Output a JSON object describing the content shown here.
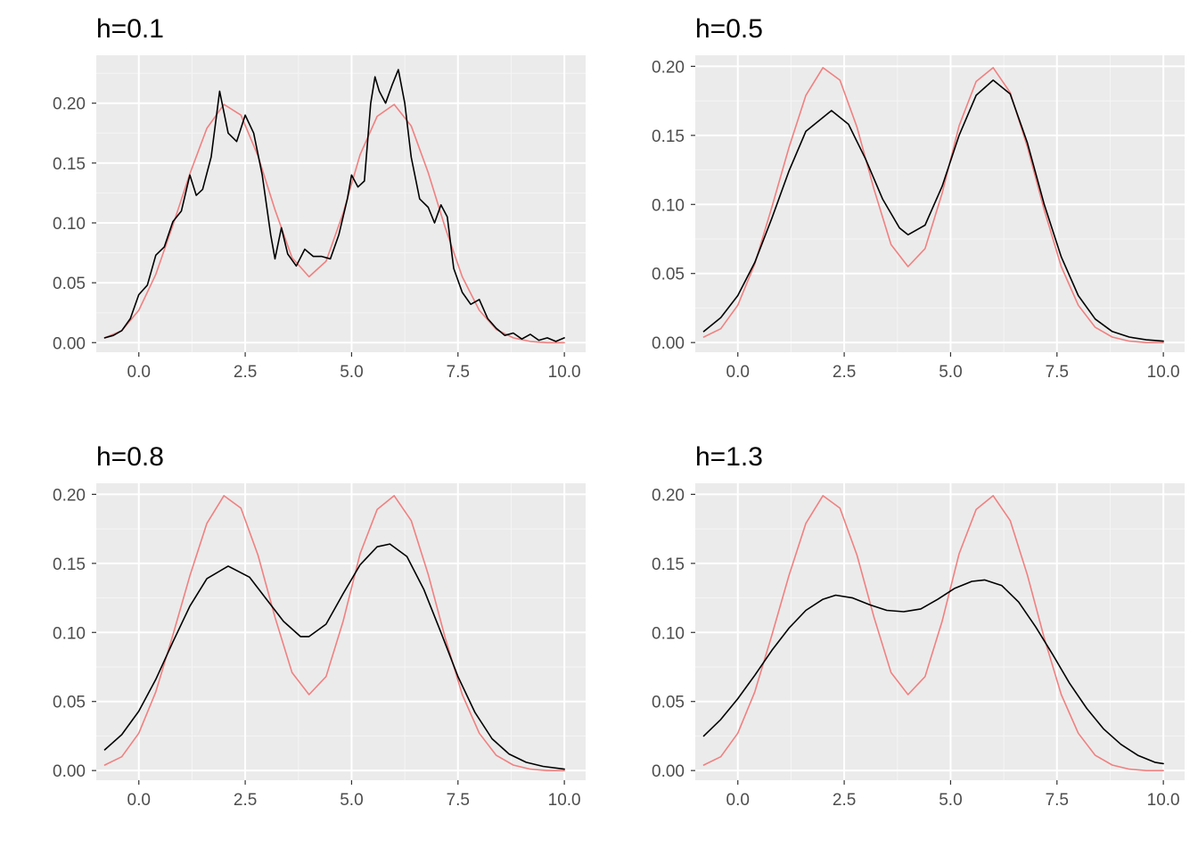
{
  "colors": {
    "panel_background": "#ebebeb",
    "grid_major": "#ffffff",
    "grid_minor": "#f5f5f5",
    "true_density": "#f08080",
    "kde_estimate": "#000000",
    "tick_text": "#4d4d4d"
  },
  "chart_data": [
    {
      "type": "line",
      "title": "h=0.1",
      "xlabel": "",
      "ylabel": "",
      "xlim": [
        -1.0,
        10.5
      ],
      "ylim": [
        -0.008,
        0.24
      ],
      "x_ticks": [
        0,
        2.5,
        5,
        7.5,
        10
      ],
      "x_tick_labels": [
        "0.0",
        "2.5",
        "5.0",
        "7.5",
        "10.0"
      ],
      "y_ticks": [
        0,
        0.05,
        0.1,
        0.15,
        0.2
      ],
      "y_tick_labels": [
        "0.00",
        "0.05",
        "0.10",
        "0.15",
        "0.20"
      ],
      "grid": true,
      "legend": "none",
      "series": [
        {
          "x": [
            -0.8,
            -0.4,
            0,
            0.4,
            0.8,
            1.2,
            1.6,
            2,
            2.4,
            2.8,
            3.2,
            3.6,
            4,
            4.4,
            4.8,
            5.2,
            5.6,
            6,
            6.4,
            6.8,
            7.2,
            7.6,
            8,
            8.4,
            8.8,
            9.2,
            9.6,
            10
          ],
          "values": [
            0.004,
            0.01,
            0.027,
            0.057,
            0.098,
            0.141,
            0.179,
            0.199,
            0.19,
            0.156,
            0.111,
            0.071,
            0.055,
            0.068,
            0.108,
            0.157,
            0.189,
            0.199,
            0.181,
            0.142,
            0.096,
            0.055,
            0.027,
            0.011,
            0.004,
            0.001,
            0.0,
            0.0
          ]
        },
        {
          "x": [
            -0.8,
            -0.6,
            -0.4,
            -0.2,
            0,
            0.2,
            0.4,
            0.6,
            0.8,
            1.0,
            1.2,
            1.35,
            1.5,
            1.7,
            1.9,
            2.1,
            2.3,
            2.5,
            2.7,
            2.9,
            3.1,
            3.2,
            3.35,
            3.5,
            3.7,
            3.9,
            4.1,
            4.3,
            4.5,
            4.7,
            4.9,
            5.0,
            5.15,
            5.3,
            5.45,
            5.55,
            5.65,
            5.8,
            5.95,
            6.1,
            6.25,
            6.4,
            6.6,
            6.8,
            6.95,
            7.1,
            7.25,
            7.4,
            7.6,
            7.8,
            8.0,
            8.2,
            8.4,
            8.6,
            8.8,
            9.0,
            9.2,
            9.4,
            9.6,
            9.8,
            10.0
          ],
          "values": [
            0.004,
            0.006,
            0.01,
            0.02,
            0.04,
            0.048,
            0.073,
            0.08,
            0.101,
            0.11,
            0.14,
            0.123,
            0.128,
            0.155,
            0.21,
            0.175,
            0.168,
            0.19,
            0.175,
            0.14,
            0.09,
            0.07,
            0.096,
            0.074,
            0.064,
            0.078,
            0.072,
            0.072,
            0.07,
            0.09,
            0.12,
            0.14,
            0.13,
            0.135,
            0.2,
            0.222,
            0.21,
            0.2,
            0.215,
            0.228,
            0.2,
            0.155,
            0.12,
            0.113,
            0.1,
            0.115,
            0.105,
            0.062,
            0.042,
            0.032,
            0.036,
            0.02,
            0.012,
            0.006,
            0.008,
            0.003,
            0.007,
            0.002,
            0.004,
            0.001,
            0.004
          ]
        }
      ]
    },
    {
      "type": "line",
      "title": "h=0.5",
      "xlabel": "",
      "ylabel": "",
      "xlim": [
        -1.0,
        10.5
      ],
      "ylim": [
        -0.007,
        0.208
      ],
      "x_ticks": [
        0,
        2.5,
        5,
        7.5,
        10
      ],
      "x_tick_labels": [
        "0.0",
        "2.5",
        "5.0",
        "7.5",
        "10.0"
      ],
      "y_ticks": [
        0,
        0.05,
        0.1,
        0.15,
        0.2
      ],
      "y_tick_labels": [
        "0.00",
        "0.05",
        "0.10",
        "0.15",
        "0.20"
      ],
      "grid": true,
      "legend": "none",
      "series": [
        {
          "x": [
            -0.8,
            -0.4,
            0,
            0.4,
            0.8,
            1.2,
            1.6,
            2,
            2.4,
            2.8,
            3.2,
            3.6,
            4,
            4.4,
            4.8,
            5.2,
            5.6,
            6,
            6.4,
            6.8,
            7.2,
            7.6,
            8,
            8.4,
            8.8,
            9.2,
            9.6,
            10
          ],
          "values": [
            0.004,
            0.01,
            0.027,
            0.057,
            0.098,
            0.141,
            0.179,
            0.199,
            0.19,
            0.156,
            0.111,
            0.071,
            0.055,
            0.068,
            0.108,
            0.157,
            0.189,
            0.199,
            0.181,
            0.142,
            0.096,
            0.055,
            0.027,
            0.011,
            0.004,
            0.001,
            0.0,
            0.0
          ]
        },
        {
          "x": [
            -0.8,
            -0.4,
            0,
            0.4,
            0.8,
            1.2,
            1.6,
            2.2,
            2.6,
            3.0,
            3.4,
            3.8,
            4.0,
            4.4,
            4.8,
            5.2,
            5.6,
            6.0,
            6.4,
            6.8,
            7.2,
            7.6,
            8.0,
            8.4,
            8.8,
            9.2,
            9.6,
            10.0
          ],
          "values": [
            0.008,
            0.018,
            0.034,
            0.058,
            0.09,
            0.124,
            0.153,
            0.168,
            0.158,
            0.133,
            0.104,
            0.083,
            0.078,
            0.085,
            0.113,
            0.15,
            0.179,
            0.19,
            0.18,
            0.145,
            0.1,
            0.062,
            0.034,
            0.017,
            0.008,
            0.004,
            0.002,
            0.001
          ]
        }
      ]
    },
    {
      "type": "line",
      "title": "h=0.8",
      "xlabel": "",
      "ylabel": "",
      "xlim": [
        -1.0,
        10.5
      ],
      "ylim": [
        -0.007,
        0.208
      ],
      "x_ticks": [
        0,
        2.5,
        5,
        7.5,
        10
      ],
      "x_tick_labels": [
        "0.0",
        "2.5",
        "5.0",
        "7.5",
        "10.0"
      ],
      "y_ticks": [
        0,
        0.05,
        0.1,
        0.15,
        0.2
      ],
      "y_tick_labels": [
        "0.00",
        "0.05",
        "0.10",
        "0.15",
        "0.20"
      ],
      "grid": true,
      "legend": "none",
      "series": [
        {
          "x": [
            -0.8,
            -0.4,
            0,
            0.4,
            0.8,
            1.2,
            1.6,
            2,
            2.4,
            2.8,
            3.2,
            3.6,
            4,
            4.4,
            4.8,
            5.2,
            5.6,
            6,
            6.4,
            6.8,
            7.2,
            7.6,
            8,
            8.4,
            8.8,
            9.2,
            9.6,
            10
          ],
          "values": [
            0.004,
            0.01,
            0.027,
            0.057,
            0.098,
            0.141,
            0.179,
            0.199,
            0.19,
            0.156,
            0.111,
            0.071,
            0.055,
            0.068,
            0.108,
            0.157,
            0.189,
            0.199,
            0.181,
            0.142,
            0.096,
            0.055,
            0.027,
            0.011,
            0.004,
            0.001,
            0.0,
            0.0
          ]
        },
        {
          "x": [
            -0.8,
            -0.4,
            0,
            0.4,
            0.8,
            1.2,
            1.6,
            2.1,
            2.6,
            3.0,
            3.4,
            3.8,
            4.0,
            4.4,
            4.8,
            5.2,
            5.6,
            5.9,
            6.3,
            6.7,
            7.1,
            7.5,
            7.9,
            8.3,
            8.7,
            9.1,
            9.5,
            10.0
          ],
          "values": [
            0.015,
            0.026,
            0.043,
            0.066,
            0.093,
            0.119,
            0.139,
            0.148,
            0.14,
            0.124,
            0.108,
            0.097,
            0.097,
            0.106,
            0.128,
            0.149,
            0.162,
            0.164,
            0.155,
            0.131,
            0.1,
            0.068,
            0.042,
            0.023,
            0.012,
            0.006,
            0.003,
            0.001
          ]
        }
      ]
    },
    {
      "type": "line",
      "title": "h=1.3",
      "xlabel": "",
      "ylabel": "",
      "xlim": [
        -1.0,
        10.5
      ],
      "ylim": [
        -0.007,
        0.208
      ],
      "x_ticks": [
        0,
        2.5,
        5,
        7.5,
        10
      ],
      "x_tick_labels": [
        "0.0",
        "2.5",
        "5.0",
        "7.5",
        "10.0"
      ],
      "y_ticks": [
        0,
        0.05,
        0.1,
        0.15,
        0.2
      ],
      "y_tick_labels": [
        "0.00",
        "0.05",
        "0.10",
        "0.15",
        "0.20"
      ],
      "grid": true,
      "legend": "none",
      "series": [
        {
          "x": [
            -0.8,
            -0.4,
            0,
            0.4,
            0.8,
            1.2,
            1.6,
            2,
            2.4,
            2.8,
            3.2,
            3.6,
            4,
            4.4,
            4.8,
            5.2,
            5.6,
            6,
            6.4,
            6.8,
            7.2,
            7.6,
            8,
            8.4,
            8.8,
            9.2,
            9.6,
            10
          ],
          "values": [
            0.004,
            0.01,
            0.027,
            0.057,
            0.098,
            0.141,
            0.179,
            0.199,
            0.19,
            0.156,
            0.111,
            0.071,
            0.055,
            0.068,
            0.108,
            0.157,
            0.189,
            0.199,
            0.181,
            0.142,
            0.096,
            0.055,
            0.027,
            0.011,
            0.004,
            0.001,
            0.0,
            0.0
          ]
        },
        {
          "x": [
            -0.8,
            -0.4,
            0,
            0.4,
            0.8,
            1.2,
            1.6,
            2.0,
            2.3,
            2.7,
            3.1,
            3.5,
            3.9,
            4.3,
            4.7,
            5.1,
            5.5,
            5.8,
            6.2,
            6.6,
            7.0,
            7.4,
            7.8,
            8.2,
            8.6,
            9.0,
            9.4,
            9.8,
            10.0
          ],
          "values": [
            0.025,
            0.037,
            0.052,
            0.069,
            0.087,
            0.103,
            0.116,
            0.124,
            0.127,
            0.125,
            0.12,
            0.116,
            0.115,
            0.117,
            0.124,
            0.132,
            0.137,
            0.138,
            0.134,
            0.122,
            0.104,
            0.084,
            0.063,
            0.045,
            0.03,
            0.019,
            0.011,
            0.006,
            0.005
          ]
        }
      ]
    }
  ]
}
